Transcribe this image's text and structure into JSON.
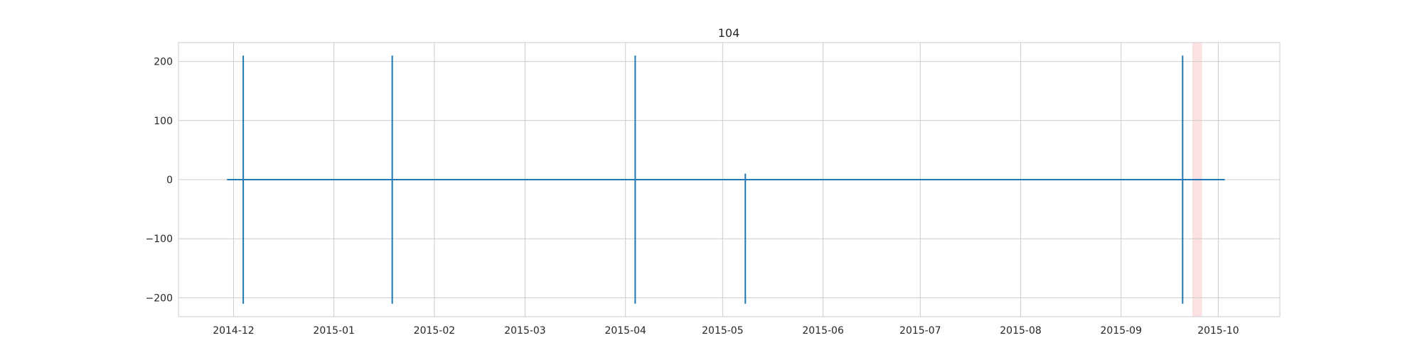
{
  "chart_data": {
    "type": "line",
    "title": "104",
    "xlabel": "",
    "ylabel": "",
    "x_type": "date",
    "xlim": [
      "2014-11-14",
      "2015-10-20"
    ],
    "ylim": [
      -232,
      232
    ],
    "grid": true,
    "x_ticks": [
      "2014-12",
      "2015-01",
      "2015-02",
      "2015-03",
      "2015-04",
      "2015-05",
      "2015-06",
      "2015-07",
      "2015-08",
      "2015-09",
      "2015-10"
    ],
    "y_ticks": [
      200,
      100,
      0,
      -100,
      -200
    ],
    "y_tick_labels": [
      "200",
      "100",
      "0",
      "−100",
      "−200"
    ],
    "series": [
      {
        "color": "#1f77b4",
        "x": [
          "2014-11-29",
          "2014-12-04",
          "2014-12-04",
          "2014-12-04",
          "2014-12-04",
          "2015-01-19",
          "2015-01-19",
          "2015-01-19",
          "2015-01-19",
          "2015-04-04",
          "2015-04-04",
          "2015-04-04",
          "2015-04-04",
          "2015-05-08",
          "2015-05-08",
          "2015-05-08",
          "2015-05-08",
          "2015-09-20",
          "2015-09-20",
          "2015-09-20",
          "2015-09-20",
          "2015-10-03"
        ],
        "y": [
          0,
          0,
          210,
          -210,
          0,
          0,
          210,
          -210,
          0,
          0,
          210,
          -210,
          0,
          0,
          10,
          -210,
          0,
          0,
          210,
          -210,
          0,
          0
        ]
      }
    ],
    "highlight_spans": [
      {
        "start": "2015-09-23",
        "end": "2015-09-26",
        "color": "#f8c8c8"
      }
    ]
  }
}
